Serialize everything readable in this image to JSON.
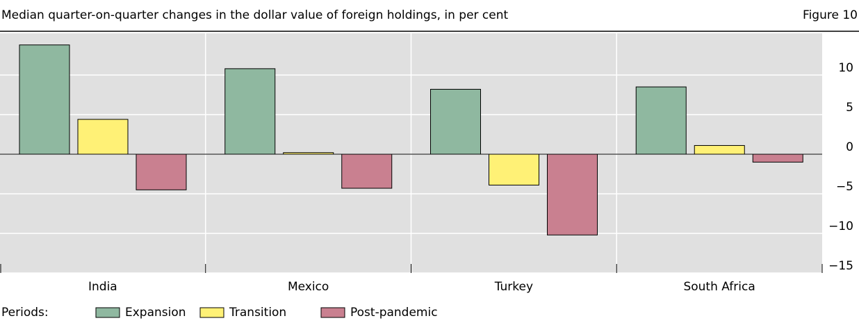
{
  "chart_data": {
    "type": "bar",
    "title": "Median quarter-on-quarter changes in the dollar value of foreign holdings, in per cent",
    "figure_label": "Figure 10",
    "categories": [
      "India",
      "Mexico",
      "Turkey",
      "South Africa"
    ],
    "legend_title": "Periods:",
    "series": [
      {
        "name": "Expansion",
        "color": "#8fb8a0",
        "values": [
          13.8,
          10.8,
          8.2,
          8.5
        ]
      },
      {
        "name": "Transition",
        "color": "#fff176",
        "values": [
          4.4,
          0.2,
          -3.9,
          1.1
        ]
      },
      {
        "name": "Post-pandemic",
        "color": "#c98090",
        "values": [
          -4.5,
          -4.3,
          -10.2,
          -1.0
        ]
      }
    ],
    "ylim": [
      -15,
      15
    ],
    "yticks": [
      {
        "value": -15,
        "label": "−15"
      },
      {
        "value": -10,
        "label": "−10"
      },
      {
        "value": -5,
        "label": "−5"
      },
      0,
      5,
      10
    ],
    "grid": true
  }
}
